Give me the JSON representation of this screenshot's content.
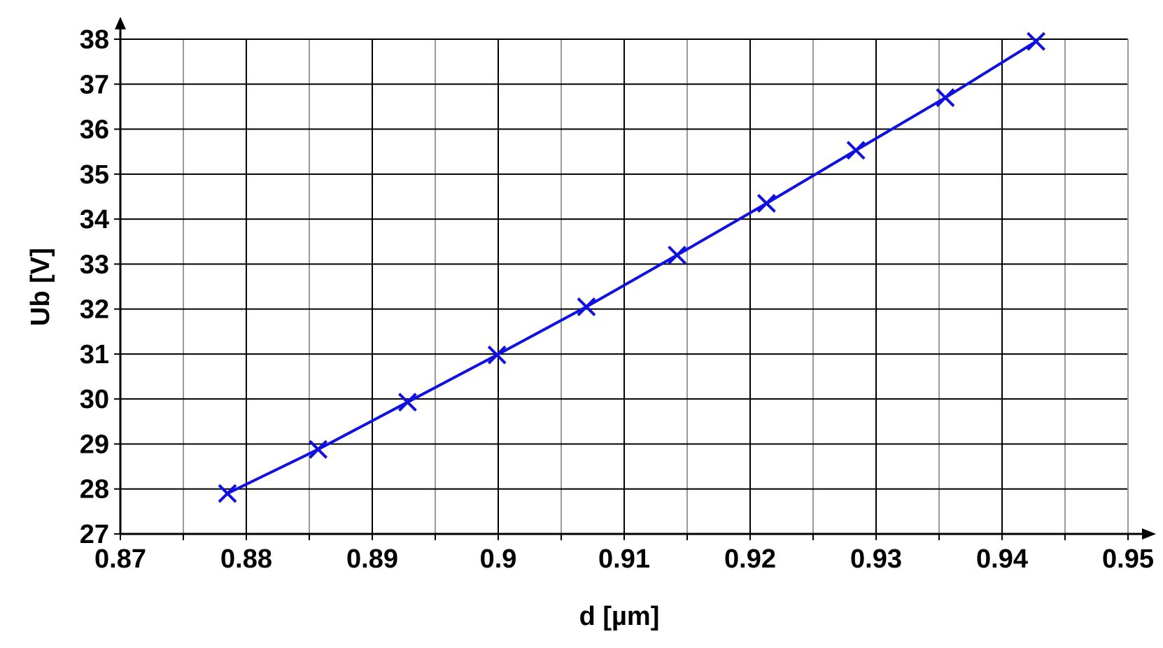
{
  "chart_data": {
    "type": "line",
    "title": "",
    "xlabel": "d [µm]",
    "ylabel": "Ub [V]",
    "xlim": [
      0.87,
      0.95
    ],
    "ylim": [
      27,
      38
    ],
    "x_ticks": [
      "0.87",
      "0.88",
      "0.89",
      "0.9",
      "0.91",
      "0.92",
      "0.93",
      "0.94",
      "0.95"
    ],
    "y_ticks": [
      "27",
      "28",
      "29",
      "30",
      "31",
      "32",
      "33",
      "34",
      "35",
      "36",
      "37",
      "38"
    ],
    "major_x_grid_step": 0.01,
    "minor_x_grid_step": 0.005,
    "y_grid_step": 1,
    "grid": true,
    "legend": "none",
    "marker": "x",
    "series": [
      {
        "color": "#1010e0",
        "x": [
          0.8785,
          0.8857,
          0.8928,
          0.8999,
          0.907,
          0.9142,
          0.9213,
          0.9284,
          0.9355,
          0.9427
        ],
        "y": [
          27.9,
          28.88,
          29.93,
          30.98,
          32.05,
          33.2,
          34.35,
          35.53,
          36.7,
          37.95
        ]
      }
    ]
  }
}
